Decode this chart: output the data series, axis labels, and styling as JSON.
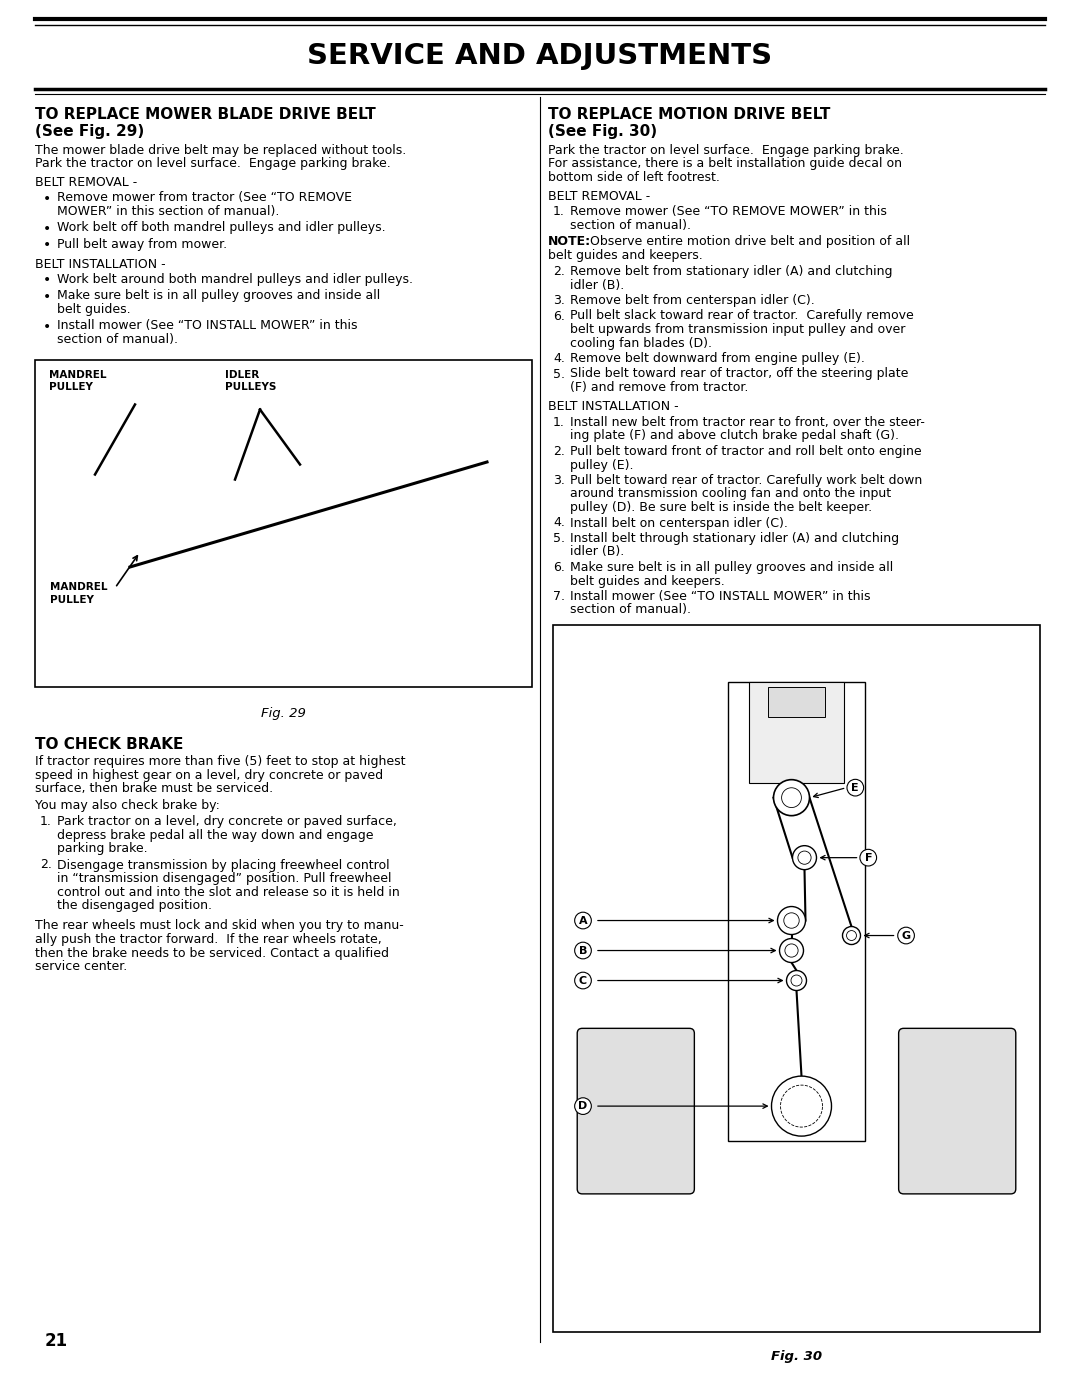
{
  "page_title": "SERVICE AND ADJUSTMENTS",
  "page_number": "21",
  "col1_heading1": "TO REPLACE MOWER BLADE DRIVE BELT",
  "col1_heading1b": "(See Fig. 29)",
  "col1_belt_removal_title": "BELT REMOVAL -",
  "col1_belt_removal_bullets": [
    [
      "Remove mower from tractor (See “TO REMOVE",
      "MOWER” in this section of manual)."
    ],
    [
      "Work belt off both mandrel pulleys and idler pulleys."
    ],
    [
      "Pull belt away from mower."
    ]
  ],
  "col1_belt_install_title": "BELT INSTALLATION -",
  "col1_belt_install_bullets": [
    [
      "Work belt around both mandrel pulleys and idler pulleys."
    ],
    [
      "Make sure belt is in all pulley grooves and inside all",
      "belt guides."
    ],
    [
      "Install mower (See “TO INSTALL MOWER” in this",
      "section of manual)."
    ]
  ],
  "fig29_caption": "Fig. 29",
  "col2_heading1": "TO REPLACE MOTION DRIVE BELT",
  "col2_heading1b": "(See Fig. 30)",
  "col2_para1_lines": [
    "Park the tractor on level surface.  Engage parking brake.",
    "For assistance, there is a belt installation guide decal on",
    "bottom side of left footrest."
  ],
  "col2_belt_removal_title": "BELT REMOVAL -",
  "col2_item1_lines": [
    "Remove mower (See “TO REMOVE MOWER” in this",
    "section of manual)."
  ],
  "col2_note_bold": "NOTE:",
  "col2_note_rest": " Observe entire motion drive belt and position of all",
  "col2_note_line2": "belt guides and keepers.",
  "col2_removal_items": [
    [
      2,
      [
        "Remove belt from stationary idler (A) and clutching",
        "idler (B)."
      ]
    ],
    [
      3,
      [
        "Remove belt from centerspan idler (C)."
      ]
    ],
    [
      6,
      [
        "Pull belt slack toward rear of tractor.  Carefully remove",
        "belt upwards from transmission input pulley and over",
        "cooling fan blades (D)."
      ]
    ],
    [
      4,
      [
        "Remove belt downward from engine pulley (E)."
      ]
    ],
    [
      5,
      [
        "Slide belt toward rear of tractor, off the steering plate",
        "(F) and remove from tractor."
      ]
    ]
  ],
  "col2_belt_install_title": "BELT INSTALLATION -",
  "col2_install_items": [
    [
      1,
      [
        "Install new belt from tractor rear to front, over the steer-",
        "ing plate (F) and above clutch brake pedal shaft (G)."
      ]
    ],
    [
      2,
      [
        "Pull belt toward front of tractor and roll belt onto engine",
        "pulley (E)."
      ]
    ],
    [
      3,
      [
        "Pull belt toward rear of tractor. Carefully work belt down",
        "around transmission cooling fan and onto the input",
        "pulley (D). Be sure belt is inside the belt keeper."
      ]
    ],
    [
      4,
      [
        "Install belt on centerspan idler (C)."
      ]
    ],
    [
      5,
      [
        "Install belt through stationary idler (A) and clutching",
        "idler (B)."
      ]
    ],
    [
      6,
      [
        "Make sure belt is in all pulley grooves and inside all",
        "belt guides and keepers."
      ]
    ],
    [
      7,
      [
        "Install mower (See “TO INSTALL MOWER” in this",
        "section of manual)."
      ]
    ]
  ],
  "fig30_caption": "Fig. 30",
  "check_brake_heading": "TO CHECK BRAKE",
  "check_brake_p1_lines": [
    "If tractor requires more than five (5) feet to stop at highest",
    "speed in highest gear on a level, dry concrete or paved",
    "surface, then brake must be serviced."
  ],
  "check_brake_p2": "You may also check brake by:",
  "check_brake_items": [
    [
      "Park tractor on a level, dry concrete or paved surface,",
      "depress brake pedal all the way down and engage",
      "parking brake."
    ],
    [
      "Disengage transmission by placing freewheel control",
      "in “transmission disengaged” position. Pull freewheel",
      "control out and into the slot and release so it is held in",
      "the disengaged position."
    ]
  ],
  "check_brake_p3_lines": [
    "The rear wheels must lock and skid when you try to manu-",
    "ally push the tractor forward.  If the rear wheels rotate,",
    "then the brake needs to be serviced. Contact a qualified",
    "service center."
  ],
  "bg_color": "#ffffff",
  "text_color": "#000000"
}
